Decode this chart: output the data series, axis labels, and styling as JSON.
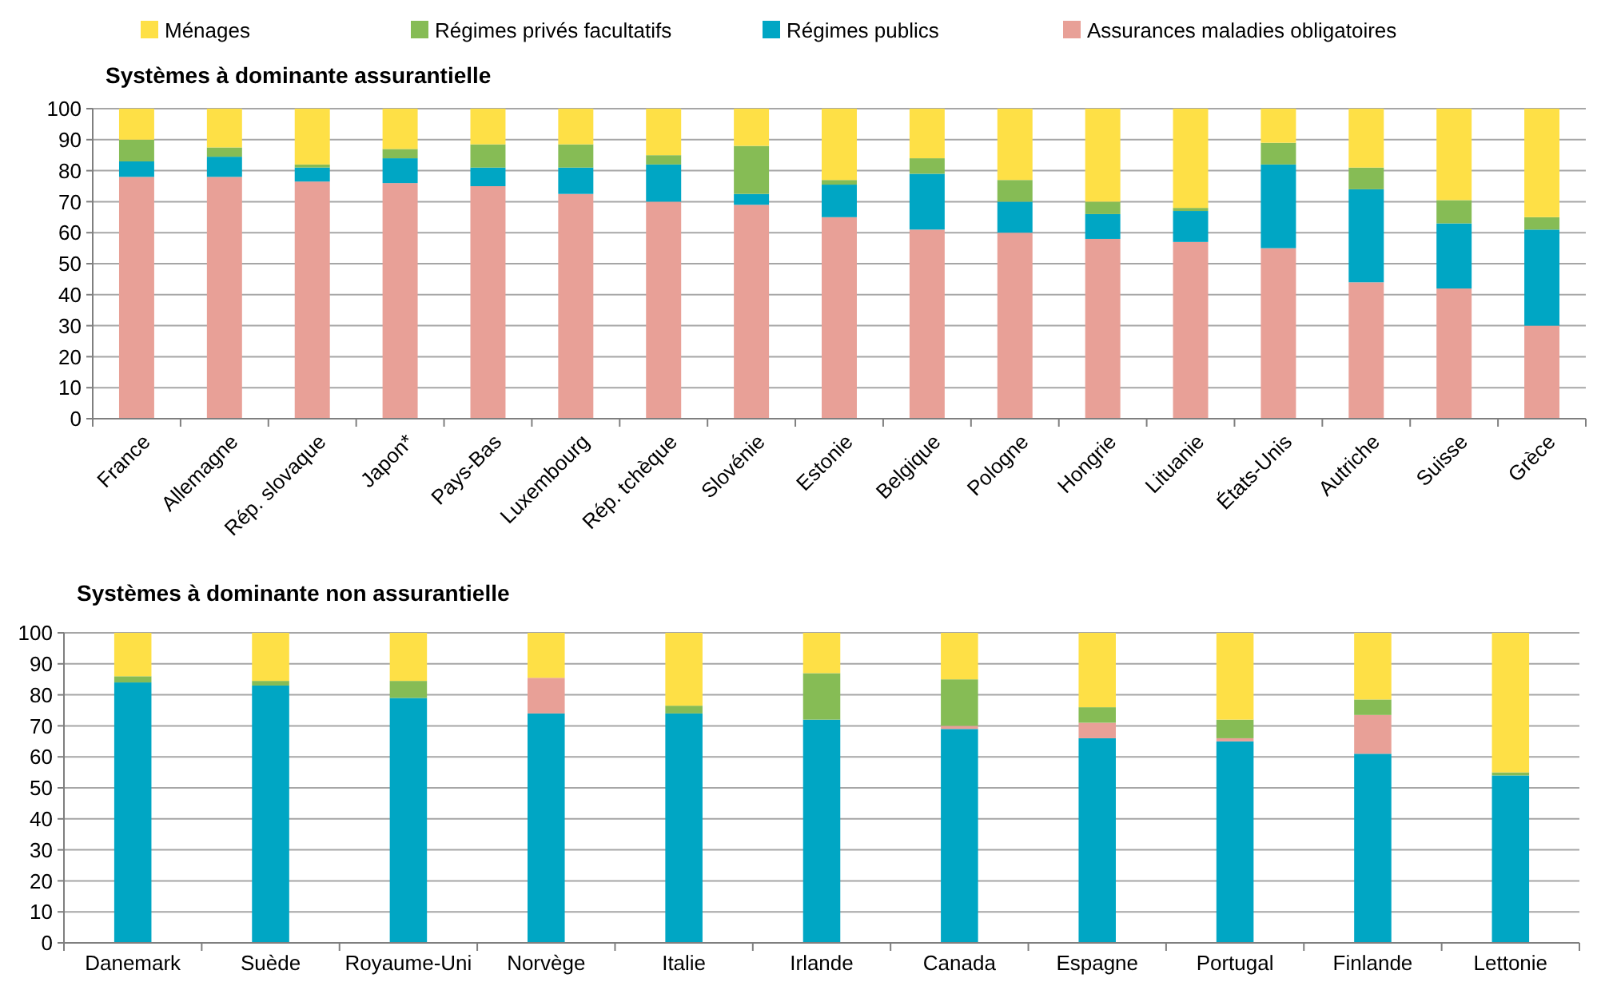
{
  "chart_data": [
    {
      "type": "bar",
      "title": "Systèmes à dominante assurantielle",
      "stacked": true,
      "legend": "top",
      "grid": "y",
      "ylim": [
        0,
        100
      ],
      "yticks": [
        0,
        10,
        20,
        30,
        40,
        50,
        60,
        70,
        80,
        90,
        100
      ],
      "categories": [
        "France",
        "Allemagne",
        "Rép. slovaque",
        "Japon*",
        "Pays-Bas",
        "Luxembourg",
        "Rép. tchèque",
        "Slovénie",
        "Estonie",
        "Belgique",
        "Pologne",
        "Hongrie",
        "Lituanie",
        "États-Unis",
        "Autriche",
        "Suisse",
        "Grèce"
      ],
      "series": [
        {
          "name": "Assurances maladies obligatoires",
          "color": "#e8a097",
          "values": [
            78,
            78,
            76.5,
            76,
            75,
            72.5,
            70,
            69,
            65,
            61,
            60,
            58,
            57,
            55,
            44,
            42,
            30
          ]
        },
        {
          "name": "Régimes publics",
          "color": "#00a6c4",
          "values": [
            5,
            6.5,
            4.5,
            8,
            6,
            8.5,
            12,
            3.5,
            10.5,
            18,
            10,
            8,
            10,
            27,
            30,
            21,
            31
          ]
        },
        {
          "name": "Régimes privés facultatifs",
          "color": "#86bc55",
          "values": [
            7,
            3,
            1,
            3,
            7.5,
            7.5,
            3,
            15.5,
            1.5,
            5,
            7,
            4,
            1,
            7,
            7,
            7.5,
            4
          ]
        },
        {
          "name": "Ménages",
          "color": "#fee046",
          "values": [
            10,
            12.5,
            18,
            13,
            11.5,
            11.5,
            15,
            12,
            23,
            16,
            23,
            30,
            32,
            11,
            19,
            29.5,
            35
          ]
        }
      ]
    },
    {
      "type": "bar",
      "title": "Systèmes à dominante non assurantielle",
      "stacked": true,
      "grid": "y",
      "ylim": [
        0,
        100
      ],
      "yticks": [
        0,
        10,
        20,
        30,
        40,
        50,
        60,
        70,
        80,
        90,
        100
      ],
      "categories": [
        "Danemark",
        "Suède",
        "Royaume-Uni",
        "Norvège",
        "Italie",
        "Irlande",
        "Canada",
        "Espagne",
        "Portugal",
        "Finlande",
        "Lettonie"
      ],
      "series": [
        {
          "color": "#00a6c4",
          "values": [
            84,
            83,
            79,
            74,
            74,
            72,
            69,
            66,
            65,
            61,
            54
          ]
        },
        {
          "color": "#e8a097",
          "values": [
            0,
            0,
            0,
            11.5,
            0,
            0,
            1,
            5,
            1,
            12.5,
            0
          ]
        },
        {
          "color": "#86bc55",
          "values": [
            2,
            1.5,
            5.5,
            0,
            2.5,
            15,
            15,
            5,
            6,
            5,
            1
          ]
        },
        {
          "color": "#fee046",
          "values": [
            14,
            15.5,
            15.5,
            14.5,
            23.5,
            13,
            15,
            24,
            28,
            21.5,
            45
          ]
        }
      ]
    }
  ]
}
